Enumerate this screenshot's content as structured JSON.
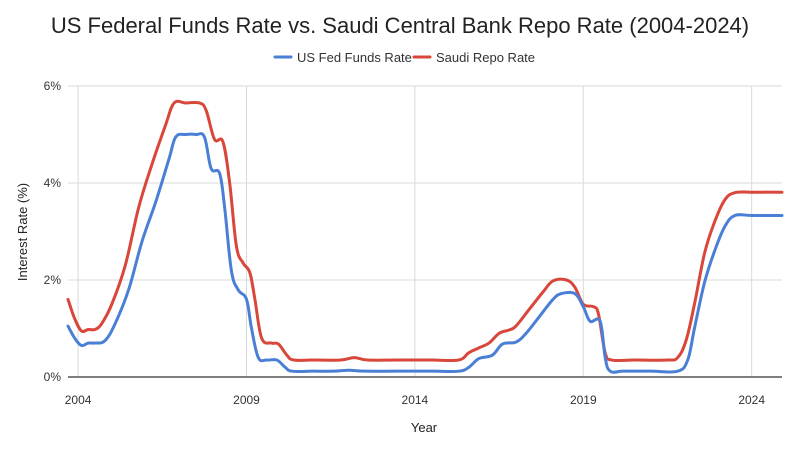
{
  "chart_data": {
    "type": "line",
    "title": "US Federal Funds Rate vs. Saudi Central Bank Repo Rate (2004-2024)",
    "xlabel": "Year",
    "ylabel": "Interest Rate (%)",
    "xlim": [
      2003.7,
      2024.9
    ],
    "ylim": [
      0,
      6
    ],
    "x_ticks": [
      2004,
      2009,
      2014,
      2019,
      2024
    ],
    "y_ticks": [
      0,
      2,
      4,
      6
    ],
    "y_tick_labels": [
      "0%",
      "2%",
      "4%",
      "6%"
    ],
    "grid": true,
    "legend_position": "top",
    "series": [
      {
        "name": "US Fed Funds Rate",
        "color": "#4a7fd6",
        "points": [
          [
            2003.7,
            1.05
          ],
          [
            2003.9,
            0.8
          ],
          [
            2004.1,
            0.65
          ],
          [
            2004.3,
            0.7
          ],
          [
            2004.5,
            0.7
          ],
          [
            2004.8,
            0.75
          ],
          [
            2005.1,
            1.1
          ],
          [
            2005.5,
            1.8
          ],
          [
            2005.9,
            2.8
          ],
          [
            2006.3,
            3.6
          ],
          [
            2006.7,
            4.5
          ],
          [
            2006.9,
            4.95
          ],
          [
            2007.2,
            5.0
          ],
          [
            2007.5,
            5.0
          ],
          [
            2007.75,
            4.95
          ],
          [
            2007.95,
            4.3
          ],
          [
            2008.2,
            4.2
          ],
          [
            2008.35,
            3.5
          ],
          [
            2008.55,
            2.2
          ],
          [
            2008.75,
            1.8
          ],
          [
            2009.0,
            1.6
          ],
          [
            2009.15,
            1.0
          ],
          [
            2009.35,
            0.4
          ],
          [
            2009.6,
            0.35
          ],
          [
            2009.9,
            0.35
          ],
          [
            2010.15,
            0.2
          ],
          [
            2010.35,
            0.12
          ],
          [
            2011.0,
            0.12
          ],
          [
            2011.6,
            0.12
          ],
          [
            2012.05,
            0.14
          ],
          [
            2012.5,
            0.12
          ],
          [
            2013.5,
            0.12
          ],
          [
            2014.5,
            0.12
          ],
          [
            2015.3,
            0.12
          ],
          [
            2015.6,
            0.2
          ],
          [
            2015.9,
            0.38
          ],
          [
            2016.3,
            0.45
          ],
          [
            2016.6,
            0.68
          ],
          [
            2017.0,
            0.72
          ],
          [
            2017.3,
            0.9
          ],
          [
            2017.7,
            1.25
          ],
          [
            2018.1,
            1.6
          ],
          [
            2018.35,
            1.72
          ],
          [
            2018.75,
            1.72
          ],
          [
            2019.0,
            1.45
          ],
          [
            2019.2,
            1.15
          ],
          [
            2019.5,
            1.15
          ],
          [
            2019.65,
            0.4
          ],
          [
            2019.8,
            0.12
          ],
          [
            2020.2,
            0.12
          ],
          [
            2021.0,
            0.12
          ],
          [
            2021.8,
            0.12
          ],
          [
            2022.1,
            0.35
          ],
          [
            2022.3,
            1.0
          ],
          [
            2022.6,
            1.95
          ],
          [
            2022.9,
            2.6
          ],
          [
            2023.2,
            3.1
          ],
          [
            2023.5,
            3.33
          ],
          [
            2024.0,
            3.33
          ],
          [
            2024.9,
            3.33
          ]
        ]
      },
      {
        "name": "Saudi Repo Rate",
        "color": "#d9463a",
        "points": [
          [
            2003.7,
            1.6
          ],
          [
            2003.9,
            1.2
          ],
          [
            2004.1,
            0.95
          ],
          [
            2004.3,
            0.98
          ],
          [
            2004.5,
            0.98
          ],
          [
            2004.7,
            1.1
          ],
          [
            2005.0,
            1.5
          ],
          [
            2005.4,
            2.3
          ],
          [
            2005.8,
            3.5
          ],
          [
            2006.2,
            4.4
          ],
          [
            2006.6,
            5.2
          ],
          [
            2006.85,
            5.65
          ],
          [
            2007.2,
            5.65
          ],
          [
            2007.6,
            5.65
          ],
          [
            2007.8,
            5.5
          ],
          [
            2008.05,
            4.9
          ],
          [
            2008.3,
            4.85
          ],
          [
            2008.5,
            4.0
          ],
          [
            2008.7,
            2.7
          ],
          [
            2008.9,
            2.35
          ],
          [
            2009.1,
            2.15
          ],
          [
            2009.25,
            1.6
          ],
          [
            2009.45,
            0.8
          ],
          [
            2009.75,
            0.7
          ],
          [
            2009.95,
            0.68
          ],
          [
            2010.2,
            0.45
          ],
          [
            2010.4,
            0.35
          ],
          [
            2011.0,
            0.35
          ],
          [
            2011.8,
            0.35
          ],
          [
            2012.2,
            0.4
          ],
          [
            2012.6,
            0.35
          ],
          [
            2013.5,
            0.35
          ],
          [
            2014.5,
            0.35
          ],
          [
            2015.3,
            0.35
          ],
          [
            2015.6,
            0.5
          ],
          [
            2015.9,
            0.6
          ],
          [
            2016.2,
            0.7
          ],
          [
            2016.5,
            0.9
          ],
          [
            2016.8,
            0.97
          ],
          [
            2017.0,
            1.05
          ],
          [
            2017.4,
            1.4
          ],
          [
            2017.8,
            1.75
          ],
          [
            2018.1,
            1.98
          ],
          [
            2018.5,
            2.0
          ],
          [
            2018.75,
            1.85
          ],
          [
            2019.0,
            1.5
          ],
          [
            2019.3,
            1.45
          ],
          [
            2019.45,
            1.3
          ],
          [
            2019.65,
            0.5
          ],
          [
            2019.85,
            0.35
          ],
          [
            2020.5,
            0.35
          ],
          [
            2021.5,
            0.35
          ],
          [
            2021.8,
            0.4
          ],
          [
            2022.05,
            0.75
          ],
          [
            2022.3,
            1.5
          ],
          [
            2022.6,
            2.55
          ],
          [
            2022.9,
            3.2
          ],
          [
            2023.2,
            3.65
          ],
          [
            2023.5,
            3.8
          ],
          [
            2024.0,
            3.81
          ],
          [
            2024.9,
            3.81
          ]
        ]
      }
    ]
  }
}
